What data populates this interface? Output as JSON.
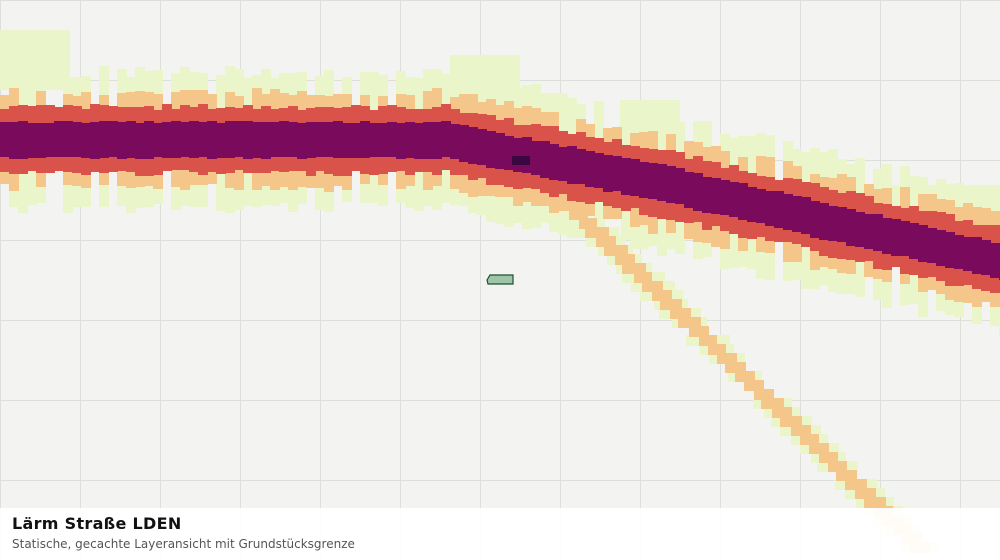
{
  "map": {
    "layer": "noise-road-lden",
    "basemap_color": "#f3f4f2",
    "grid_color": "#dddfdb",
    "parcel": {
      "fill": "#9fc5a8",
      "stroke": "#1f4d33"
    },
    "noise_classes": [
      {
        "level": 1,
        "color": "#eaf5c9"
      },
      {
        "level": 2,
        "color": "#f5c68a"
      },
      {
        "level": 3,
        "color": "#d9534a"
      },
      {
        "level": 4,
        "color": "#7a0a5c"
      },
      {
        "level": 5,
        "color": "#3a0740"
      }
    ]
  },
  "caption": {
    "title": "Lärm Straße LDEN",
    "subtitle": "Statische, gecachte Layeransicht mit Grundstücksgrenze"
  }
}
